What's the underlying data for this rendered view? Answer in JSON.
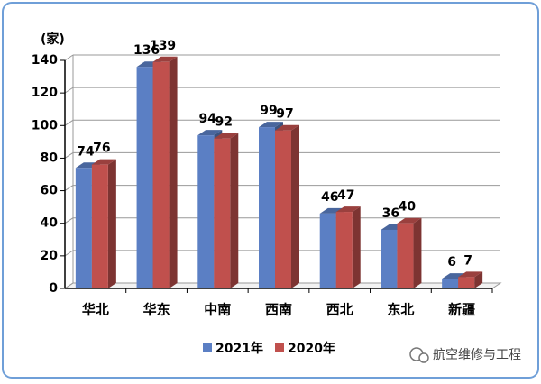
{
  "chart_data": {
    "type": "bar3d",
    "y_axis_label": "(家)",
    "categories": [
      "华北",
      "华东",
      "中南",
      "西南",
      "西北",
      "东北",
      "新疆"
    ],
    "series": [
      {
        "name": "2021年",
        "color": "#5b7fc4",
        "values": [
          74,
          136,
          94,
          99,
          46,
          36,
          6
        ]
      },
      {
        "name": "2020年",
        "color": "#c0504d",
        "values": [
          76,
          139,
          92,
          97,
          47,
          40,
          7
        ]
      }
    ],
    "ylim": [
      0,
      140
    ],
    "yticks": [
      0,
      20,
      40,
      60,
      80,
      100,
      120,
      140
    ],
    "grid": true,
    "legend": "bottom",
    "watermark": "航空维修与工程"
  }
}
